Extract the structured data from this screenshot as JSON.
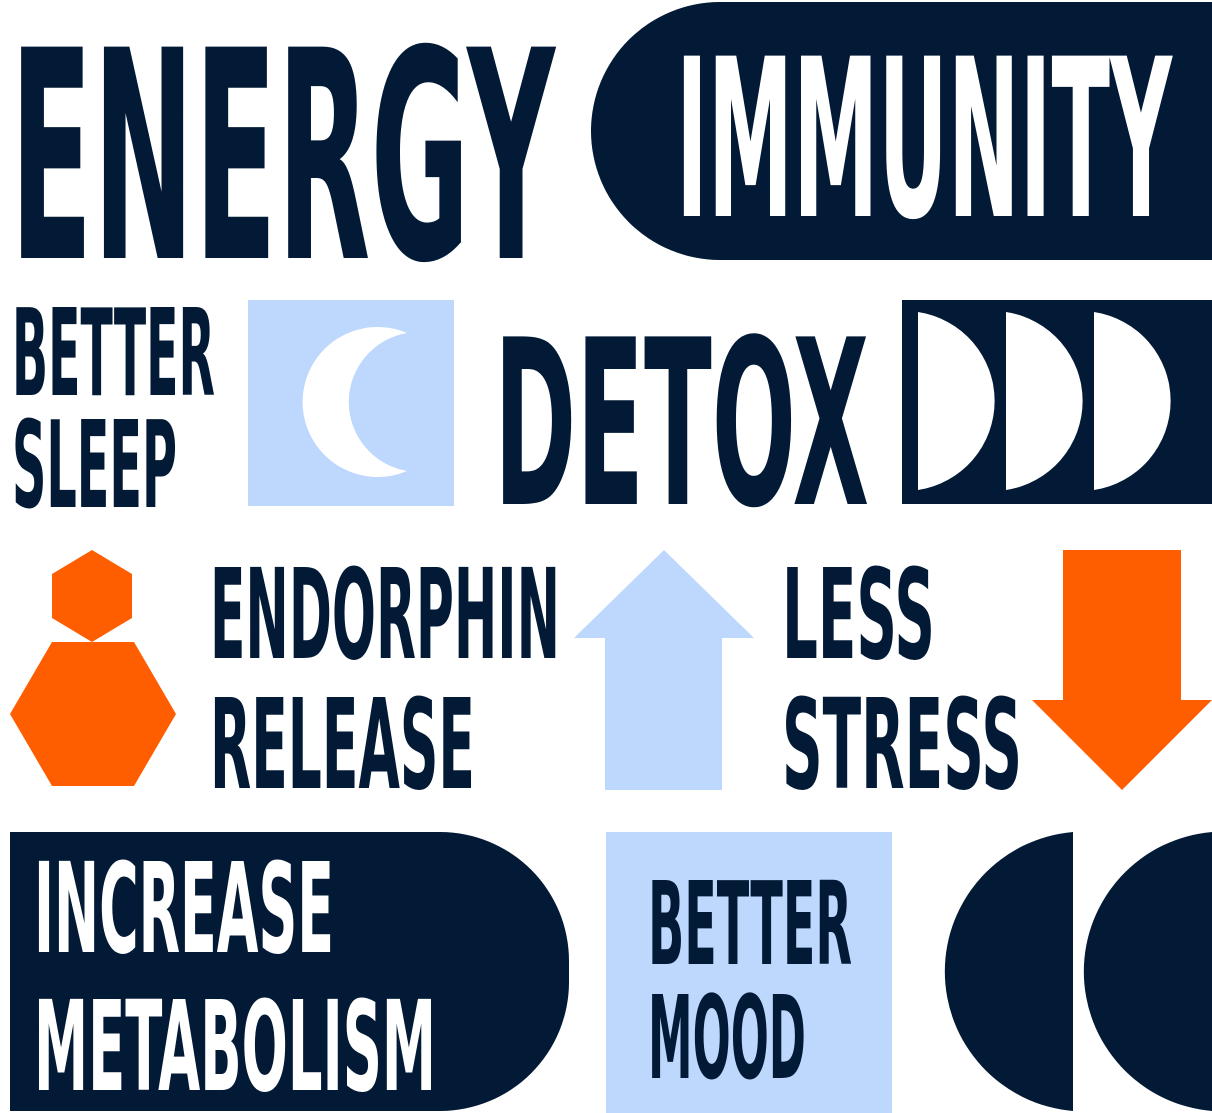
{
  "colors": {
    "navy": "#031A36",
    "light_blue": "#BDD7FD",
    "orange": "#FF5E00",
    "white": "#FFFFFF"
  },
  "labels": {
    "energy": "ENERGY",
    "immunity": "IMMUNITY",
    "better_sleep_1": "BETTER",
    "better_sleep_2": "SLEEP",
    "detox": "DETOX",
    "endorphin_1": "ENDORPHIN",
    "endorphin_2": "RELEASE",
    "less_stress_1": "LESS",
    "less_stress_2": "STRESS",
    "metabolism_1": "INCREASE",
    "metabolism_2": "METABOLISM",
    "better_mood_1": "BETTER",
    "better_mood_2": "MOOD"
  },
  "icons": {
    "moon": "crescent-moon-icon",
    "half_circles": "half-circles-icon",
    "hexagons": "stacked-hexagons-icon",
    "arrow_up": "arrow-up-icon",
    "arrow_down": "arrow-down-icon",
    "quotes": "quote-shapes-icon"
  }
}
